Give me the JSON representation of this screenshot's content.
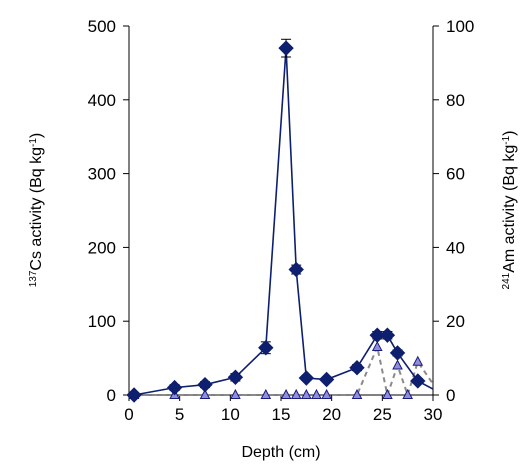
{
  "chart_data": {
    "type": "line",
    "xlabel": "Depth (cm)",
    "y1label": {
      "sup": "137",
      "text": "Cs activity (Bq kg",
      "sup2": "-1",
      "end": ")"
    },
    "y2label": {
      "sup": "241",
      "text": "Am activity (Bq kg",
      "sup2": "-1",
      "end": ")"
    },
    "xlim": [
      0,
      30
    ],
    "y1lim": [
      0,
      500
    ],
    "y2lim": [
      0,
      100
    ],
    "xticks": [
      0,
      5,
      10,
      15,
      20,
      25,
      30
    ],
    "y1ticks": [
      0,
      100,
      200,
      300,
      400,
      500
    ],
    "y2ticks": [
      0,
      20,
      40,
      60,
      80,
      100
    ],
    "grid": false,
    "colors": {
      "cs": "#0d1f6e",
      "am": "#8a8a8a",
      "am_marker_fill": "#8f8fd9",
      "am_marker_stroke": "#1a1a80"
    },
    "series": [
      {
        "axis": "left",
        "style": "solid-diamond",
        "x": [
          0.5,
          4.5,
          7.5,
          10.5,
          13.5,
          15.5,
          16.5,
          17.5,
          19.5,
          22.5,
          24.5,
          25.5,
          26.5,
          28.5,
          30
        ],
        "y": [
          0,
          10,
          14,
          24,
          64,
          470,
          170,
          23,
          21,
          37,
          81,
          81,
          57,
          19,
          8
        ],
        "err": [
          0,
          4,
          4,
          5,
          8,
          12,
          6,
          3,
          3,
          4,
          5,
          5,
          4,
          3,
          2
        ]
      },
      {
        "axis": "right",
        "style": "dashed-triangle",
        "x": [
          0.5,
          4.5,
          7.5,
          10.5,
          13.5,
          15.5,
          16.5,
          17.5,
          18.5,
          19.5,
          22.5,
          24.5,
          25.5,
          26.5,
          27.5,
          28.5,
          30
        ],
        "y": [
          0,
          0,
          0,
          0,
          0,
          0,
          0,
          0,
          0,
          0,
          0,
          13,
          0,
          8,
          0,
          9,
          3
        ]
      }
    ]
  }
}
